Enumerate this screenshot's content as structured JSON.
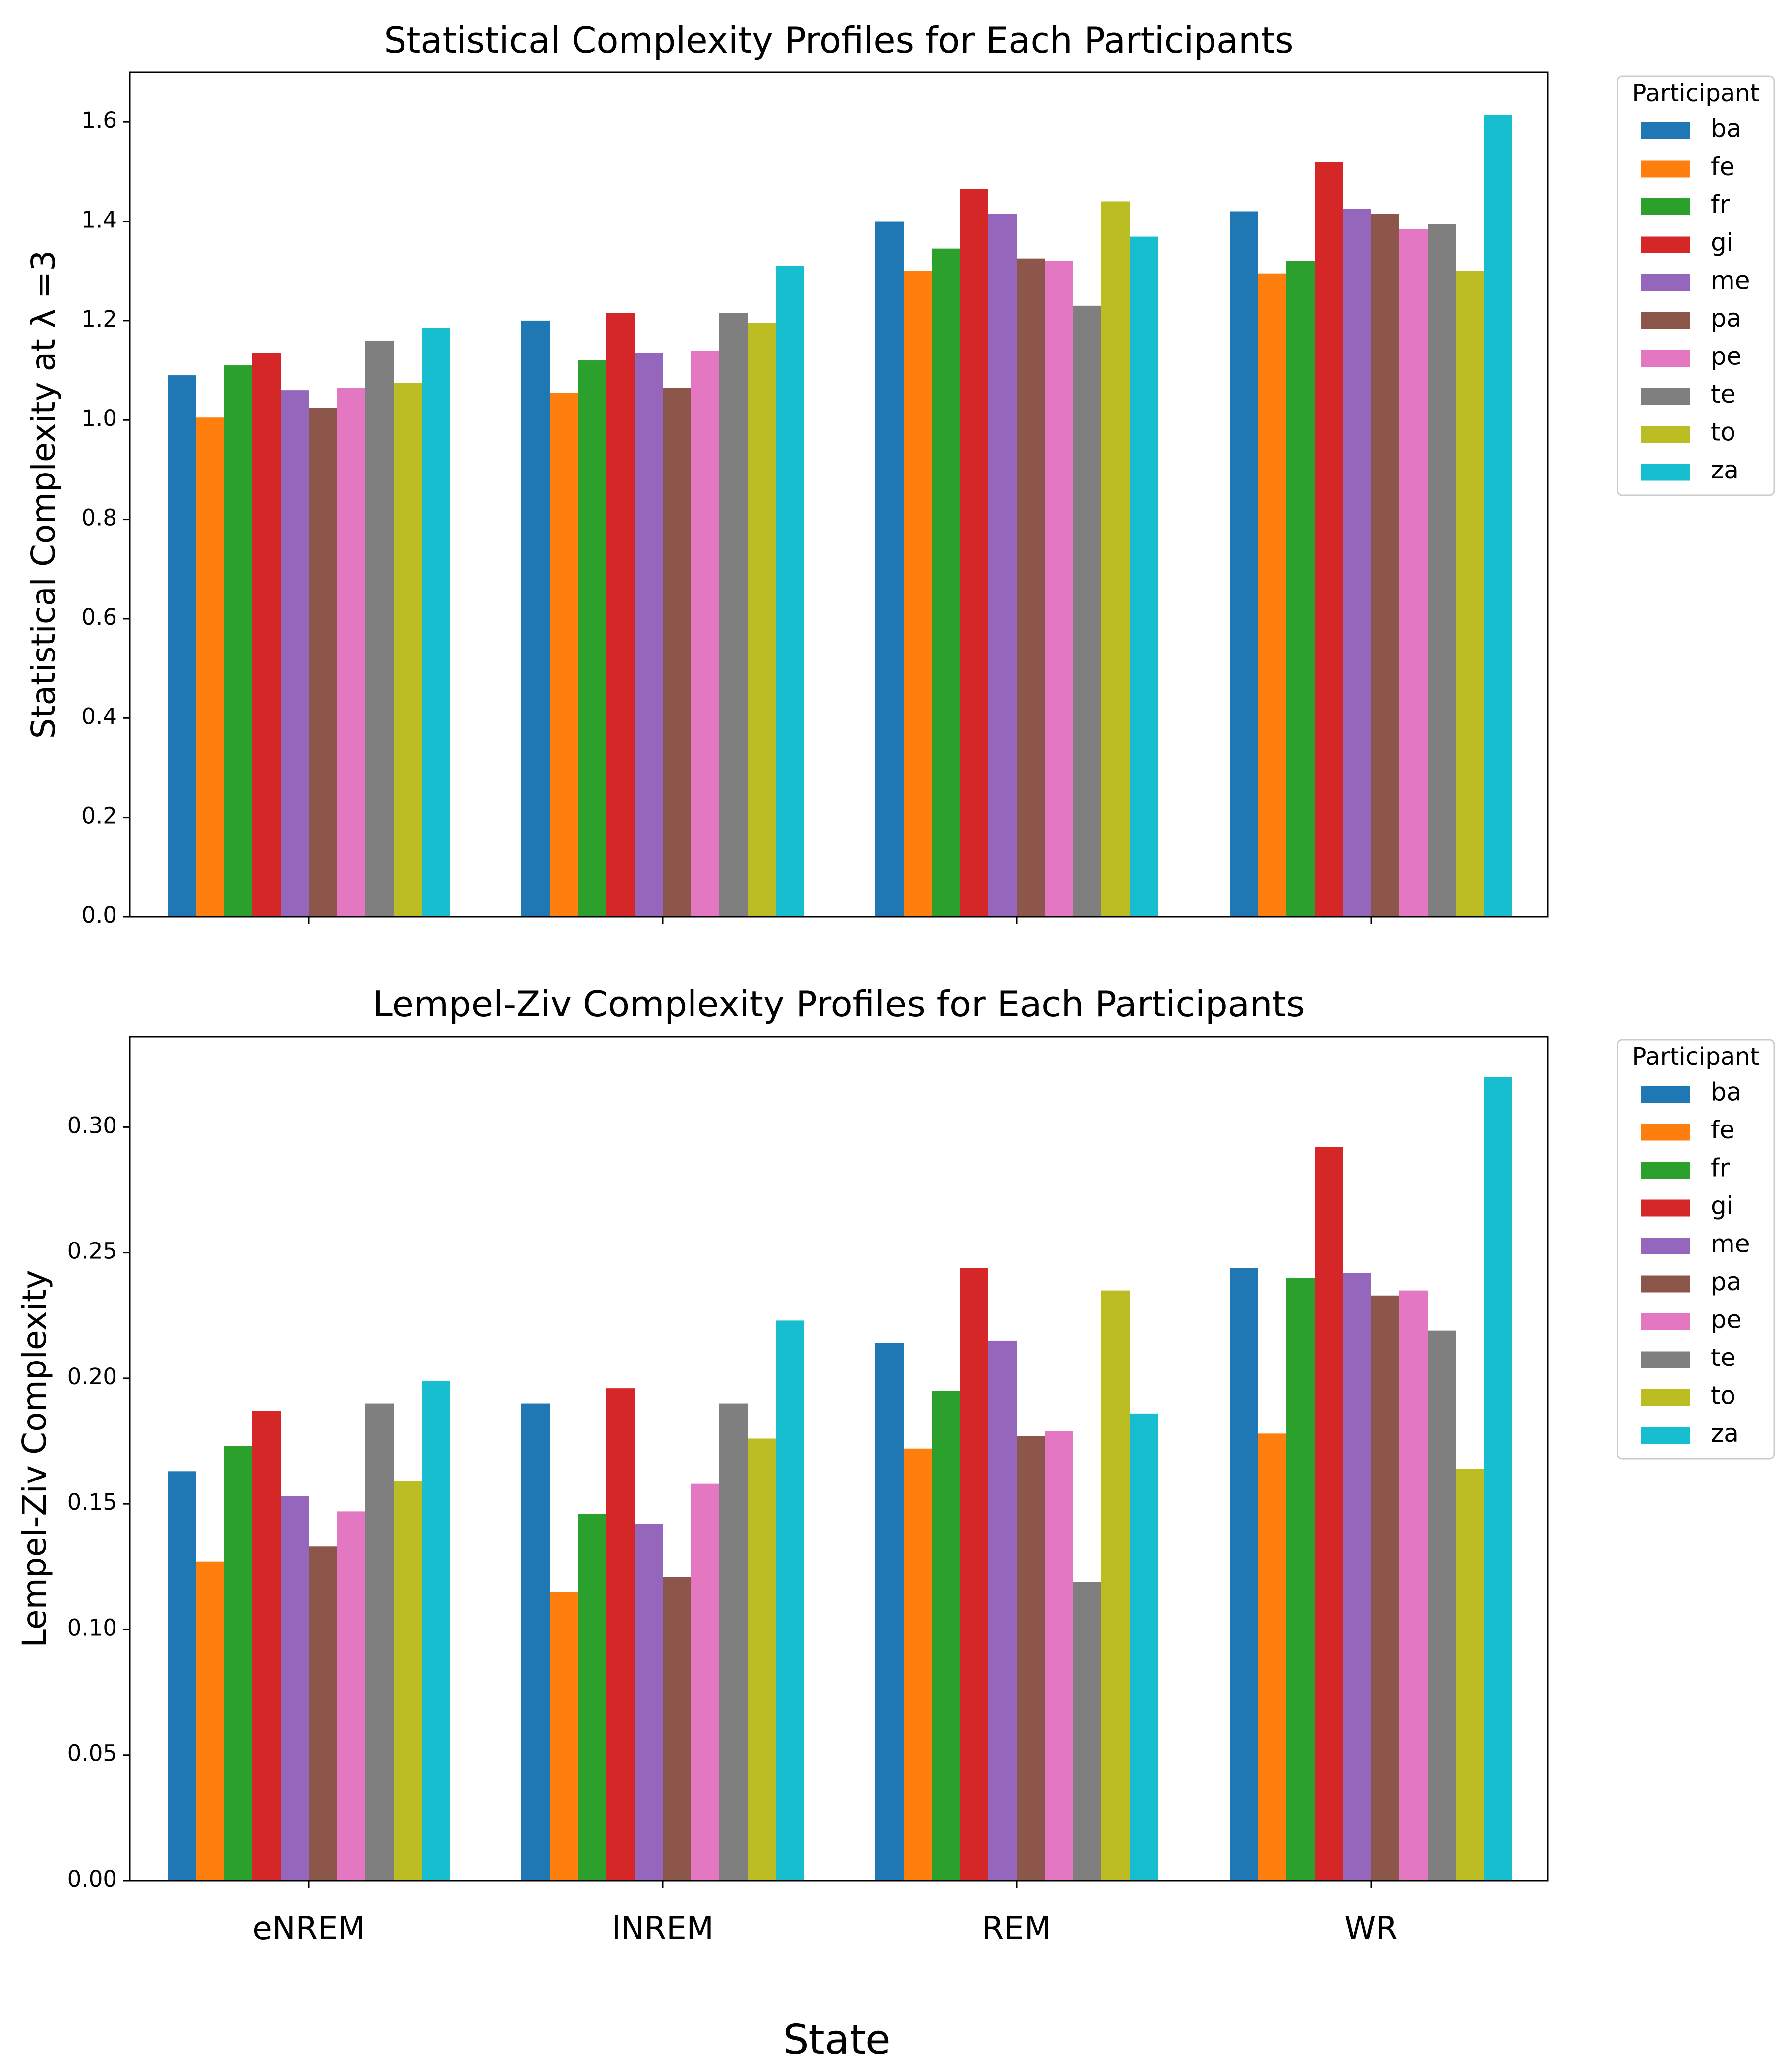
{
  "figure": {
    "shared_xlabel": "State"
  },
  "chart_data": [
    {
      "type": "bar",
      "title": "Statistical Complexity Profiles for Each Participants",
      "xlabel": "",
      "ylabel": "Statistical Complexity at λ =3",
      "ylim": [
        0,
        1.7
      ],
      "yticks": [
        0.0,
        0.2,
        0.4,
        0.6,
        0.8,
        1.0,
        1.2,
        1.4,
        1.6
      ],
      "ytick_labels": [
        "0.0",
        "0.2",
        "0.4",
        "0.6",
        "0.8",
        "1.0",
        "1.2",
        "1.4",
        "1.6"
      ],
      "show_category_labels": false,
      "categories": [
        "eNREM",
        "lNREM",
        "REM",
        "WR"
      ],
      "legend_title": "Participant",
      "legend_position": "outside-right-top",
      "grid": false,
      "series": [
        {
          "name": "ba",
          "color": "#1f77b4",
          "values": [
            1.09,
            1.2,
            1.4,
            1.42
          ]
        },
        {
          "name": "fe",
          "color": "#ff7f0e",
          "values": [
            1.005,
            1.055,
            1.3,
            1.295
          ]
        },
        {
          "name": "fr",
          "color": "#2ca02c",
          "values": [
            1.11,
            1.12,
            1.345,
            1.32
          ]
        },
        {
          "name": "gi",
          "color": "#d62728",
          "values": [
            1.135,
            1.215,
            1.465,
            1.52
          ]
        },
        {
          "name": "me",
          "color": "#9467bd",
          "values": [
            1.06,
            1.135,
            1.415,
            1.425
          ]
        },
        {
          "name": "pa",
          "color": "#8c564b",
          "values": [
            1.025,
            1.065,
            1.325,
            1.415
          ]
        },
        {
          "name": "pe",
          "color": "#e377c2",
          "values": [
            1.065,
            1.14,
            1.32,
            1.385
          ]
        },
        {
          "name": "te",
          "color": "#7f7f7f",
          "values": [
            1.16,
            1.215,
            1.23,
            1.395
          ]
        },
        {
          "name": "to",
          "color": "#bcbd22",
          "values": [
            1.075,
            1.195,
            1.44,
            1.3
          ]
        },
        {
          "name": "za",
          "color": "#17becf",
          "values": [
            1.185,
            1.31,
            1.37,
            1.615
          ]
        }
      ]
    },
    {
      "type": "bar",
      "title": "Lempel-Ziv Complexity Profiles for Each Participants",
      "xlabel": "State",
      "ylabel": "Lempel-Ziv Complexity",
      "ylim": [
        0,
        0.336
      ],
      "yticks": [
        0.0,
        0.05,
        0.1,
        0.15,
        0.2,
        0.25,
        0.3
      ],
      "ytick_labels": [
        "0.00",
        "0.05",
        "0.10",
        "0.15",
        "0.20",
        "0.25",
        "0.30"
      ],
      "show_category_labels": true,
      "categories": [
        "eNREM",
        "lNREM",
        "REM",
        "WR"
      ],
      "legend_title": "Participant",
      "legend_position": "outside-right-top",
      "grid": false,
      "series": [
        {
          "name": "ba",
          "color": "#1f77b4",
          "values": [
            0.163,
            0.19,
            0.214,
            0.244
          ]
        },
        {
          "name": "fe",
          "color": "#ff7f0e",
          "values": [
            0.127,
            0.115,
            0.172,
            0.178
          ]
        },
        {
          "name": "fr",
          "color": "#2ca02c",
          "values": [
            0.173,
            0.146,
            0.195,
            0.24
          ]
        },
        {
          "name": "gi",
          "color": "#d62728",
          "values": [
            0.187,
            0.196,
            0.244,
            0.292
          ]
        },
        {
          "name": "me",
          "color": "#9467bd",
          "values": [
            0.153,
            0.142,
            0.215,
            0.242
          ]
        },
        {
          "name": "pa",
          "color": "#8c564b",
          "values": [
            0.133,
            0.121,
            0.177,
            0.233
          ]
        },
        {
          "name": "pe",
          "color": "#e377c2",
          "values": [
            0.147,
            0.158,
            0.179,
            0.235
          ]
        },
        {
          "name": "te",
          "color": "#7f7f7f",
          "values": [
            0.19,
            0.19,
            0.119,
            0.219
          ]
        },
        {
          "name": "to",
          "color": "#bcbd22",
          "values": [
            0.159,
            0.176,
            0.235,
            0.164
          ]
        },
        {
          "name": "za",
          "color": "#17becf",
          "values": [
            0.199,
            0.223,
            0.186,
            0.32
          ]
        }
      ]
    }
  ]
}
